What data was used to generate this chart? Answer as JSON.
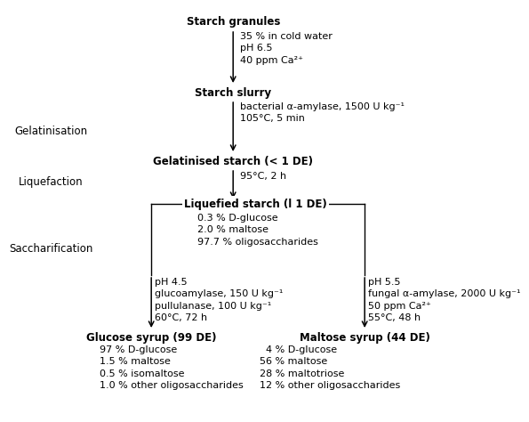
{
  "bg_color": "#ffffff",
  "starch_granules": "Starch granules",
  "starch_slurry": "Starch slurry",
  "gelat_starch": "Gelatinised starch (< 1 DE)",
  "liqu_starch": "Liquefied starch (l 1 DE)",
  "glucose_syrup": "Glucose syrup (99 DE)",
  "maltose_syrup": "Maltose syrup (44 DE)",
  "gelatinisation": "Gelatinisation",
  "liquefaction": "Liquefaction",
  "saccharification": "Saccharification",
  "to_slurry_lines": [
    "35 % in cold water",
    "pH 6.5",
    "40 ppm Ca²⁺"
  ],
  "to_gelat_lines": [
    "bacterial α-amylase, 1500 U kg⁻¹",
    "105°C, 5 min"
  ],
  "to_liqu_line": "95°C, 2 h",
  "liqu_content": [
    "0.3 % D-glucose",
    "2.0 % maltose",
    "97.7 % oligosaccharides"
  ],
  "to_glucose_lines": [
    "pH 4.5",
    "glucoamylase, 150 U kg⁻¹",
    "pullulanase, 100 U kg⁻¹",
    "60°C, 72 h"
  ],
  "to_maltose_lines": [
    "pH 5.5",
    "fungal α-amylase, 2000 U kg⁻¹",
    "50 ppm Ca²⁺",
    "55°C, 48 h"
  ],
  "glucose_comp": [
    "97 % D-glucose",
    "1.5 % maltose",
    "0.5 % isomaltose",
    "1.0 % other oligosaccharides"
  ],
  "maltose_comp": [
    "  4 % D-glucose",
    "56 % maltose",
    "28 % maltotriose",
    "12 % other oligosaccharides"
  ]
}
